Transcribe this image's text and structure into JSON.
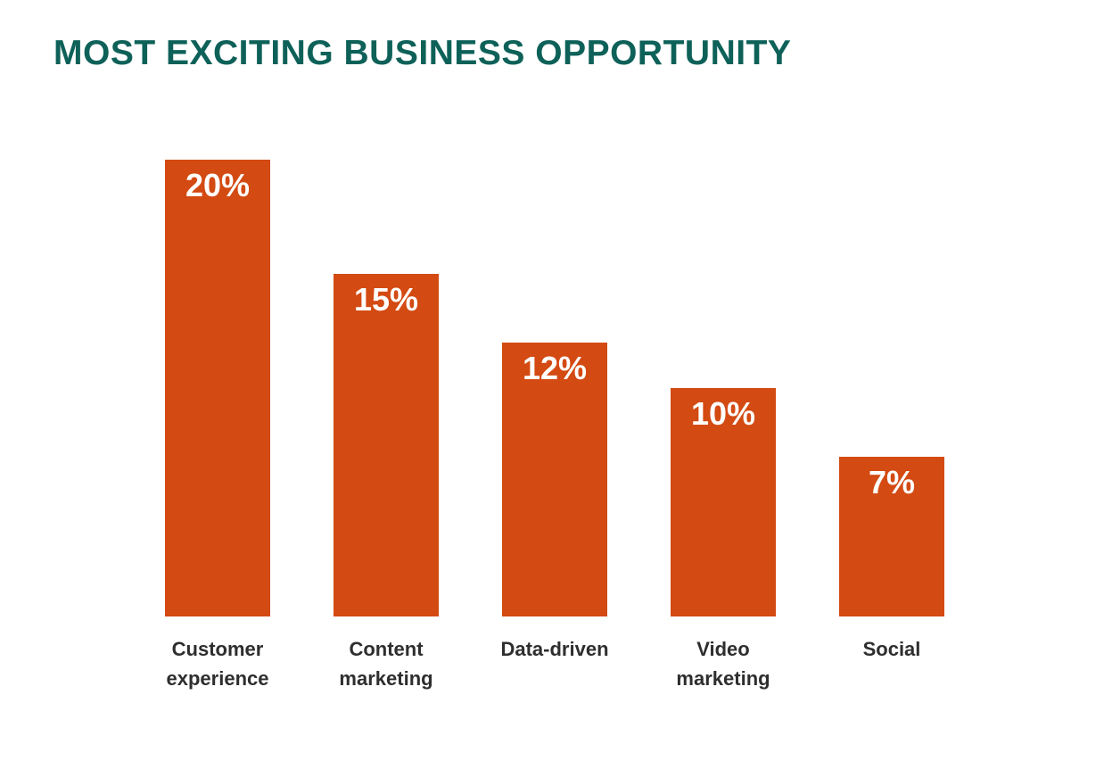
{
  "chart_data": {
    "type": "bar",
    "title": "MOST EXCITING BUSINESS OPPORTUNITY",
    "categories": [
      "Customer experience",
      "Content marketing",
      "Data-driven",
      "Video marketing",
      "Social"
    ],
    "values": [
      20,
      15,
      12,
      10,
      7
    ],
    "value_labels": [
      "20%",
      "15%",
      "12%",
      "10%",
      "7%"
    ],
    "xlabel": "",
    "ylabel": "",
    "ylim": [
      0,
      20
    ],
    "grid": false,
    "legend": "none",
    "orientation": "vertical",
    "colors": {
      "bar": "#d34a12",
      "title": "#0e6159",
      "category_label": "#2e2e2e",
      "value_label": "#ffffff",
      "background": "#ffffff"
    }
  }
}
